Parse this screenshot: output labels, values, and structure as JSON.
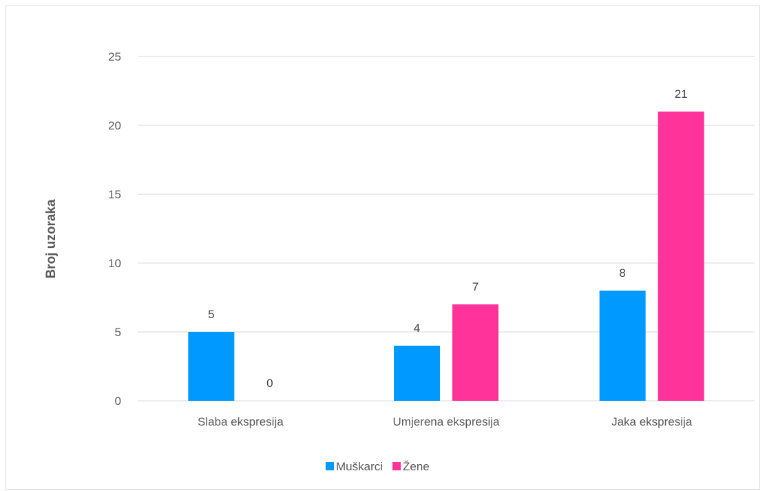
{
  "chart_data": {
    "type": "bar",
    "categories": [
      "Slaba ekspresija",
      "Umjerena ekspresija",
      "Jaka ekspresija"
    ],
    "series": [
      {
        "name": "Muškarci",
        "values": [
          5,
          4,
          8
        ],
        "color": "#0099ff"
      },
      {
        "name": "Žene",
        "values": [
          0,
          7,
          21
        ],
        "color": "#ff3399"
      }
    ],
    "title": "",
    "xlabel": "",
    "ylabel": "Broj uzoraka",
    "ylim": [
      0,
      25
    ],
    "yticks": [
      0,
      5,
      10,
      15,
      20,
      25
    ],
    "grid": true,
    "legend_position": "bottom",
    "data_labels": true
  }
}
